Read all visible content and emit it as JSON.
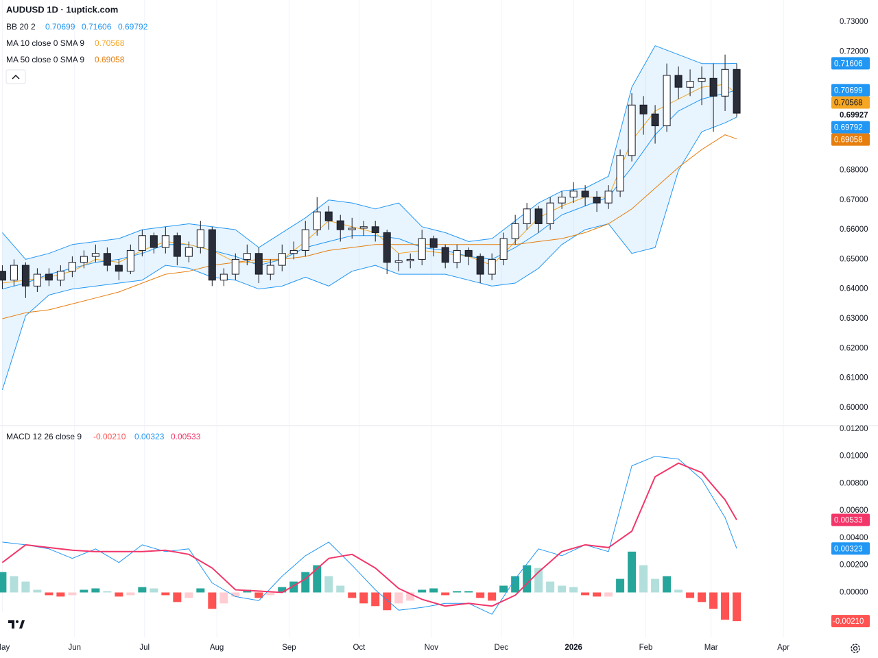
{
  "chart_data": {
    "type": "candlestick",
    "title": "AUDUSD 1D · 1uptick.com",
    "x": [
      0,
      5,
      10,
      15,
      20,
      25,
      30,
      35,
      40,
      45,
      50,
      55,
      60,
      65,
      70,
      75,
      80,
      85,
      90,
      95,
      100,
      105,
      110,
      115,
      120,
      125,
      130,
      135,
      140,
      145,
      150,
      155,
      160,
      165,
      170,
      175,
      180,
      185,
      190,
      195,
      200,
      205,
      210,
      215,
      220,
      225,
      230,
      235,
      240,
      245,
      250,
      255,
      260,
      265,
      270,
      275,
      280,
      285,
      290,
      295,
      300,
      305,
      310,
      315
    ],
    "open": [
      0.646,
      0.643,
      0.648,
      0.641,
      0.645,
      0.643,
      0.646,
      0.649,
      0.651,
      0.652,
      0.648,
      0.646,
      0.653,
      0.658,
      0.654,
      0.658,
      0.651,
      0.654,
      0.66,
      0.643,
      0.645,
      0.65,
      0.652,
      0.645,
      0.648,
      0.652,
      0.653,
      0.66,
      0.666,
      0.663,
      0.66,
      0.6605,
      0.661,
      0.659,
      0.649,
      0.6495,
      0.65,
      0.657,
      0.654,
      0.649,
      0.653,
      0.651,
      0.645,
      0.65,
      0.657,
      0.662,
      0.667,
      0.662,
      0.669,
      0.671,
      0.673,
      0.671,
      0.669,
      0.673,
      0.685,
      0.702,
      0.699,
      0.695,
      0.712,
      0.708,
      0.71,
      0.711,
      0.705,
      0.714
    ],
    "high": [
      0.648,
      0.65,
      0.649,
      0.647,
      0.647,
      0.648,
      0.651,
      0.653,
      0.655,
      0.654,
      0.65,
      0.655,
      0.66,
      0.659,
      0.661,
      0.659,
      0.656,
      0.663,
      0.661,
      0.647,
      0.652,
      0.655,
      0.654,
      0.65,
      0.655,
      0.656,
      0.663,
      0.671,
      0.668,
      0.665,
      0.664,
      0.663,
      0.663,
      0.66,
      0.652,
      0.652,
      0.66,
      0.658,
      0.655,
      0.655,
      0.654,
      0.652,
      0.652,
      0.659,
      0.665,
      0.669,
      0.668,
      0.671,
      0.673,
      0.676,
      0.675,
      0.673,
      0.675,
      0.687,
      0.706,
      0.705,
      0.702,
      0.716,
      0.715,
      0.714,
      0.715,
      0.716,
      0.719,
      0.716
    ],
    "low": [
      0.64,
      0.641,
      0.637,
      0.639,
      0.641,
      0.641,
      0.644,
      0.647,
      0.649,
      0.646,
      0.643,
      0.645,
      0.651,
      0.652,
      0.652,
      0.648,
      0.649,
      0.652,
      0.641,
      0.641,
      0.643,
      0.648,
      0.642,
      0.643,
      0.646,
      0.65,
      0.651,
      0.658,
      0.66,
      0.656,
      0.657,
      0.658,
      0.656,
      0.645,
      0.646,
      0.647,
      0.648,
      0.651,
      0.647,
      0.647,
      0.648,
      0.642,
      0.643,
      0.648,
      0.655,
      0.66,
      0.659,
      0.66,
      0.667,
      0.669,
      0.668,
      0.666,
      0.667,
      0.671,
      0.683,
      0.692,
      0.689,
      0.693,
      0.704,
      0.705,
      0.702,
      0.693,
      0.7,
      0.698
    ],
    "close": [
      0.643,
      0.648,
      0.641,
      0.645,
      0.643,
      0.646,
      0.649,
      0.651,
      0.652,
      0.648,
      0.646,
      0.653,
      0.658,
      0.654,
      0.658,
      0.651,
      0.654,
      0.66,
      0.643,
      0.645,
      0.65,
      0.652,
      0.645,
      0.648,
      0.652,
      0.653,
      0.66,
      0.666,
      0.663,
      0.66,
      0.6605,
      0.661,
      0.659,
      0.649,
      0.6495,
      0.65,
      0.657,
      0.654,
      0.649,
      0.653,
      0.651,
      0.645,
      0.65,
      0.657,
      0.662,
      0.667,
      0.662,
      0.669,
      0.671,
      0.673,
      0.671,
      0.669,
      0.673,
      0.685,
      0.702,
      0.699,
      0.695,
      0.712,
      0.708,
      0.71,
      0.711,
      0.705,
      0.714,
      0.69927
    ],
    "up_color": "#ffffff",
    "down_color": "#2a2e39",
    "xlim": [
      -1,
      355
    ],
    "xticks": [
      {
        "value": 0,
        "label": "May"
      },
      {
        "value": 31,
        "label": "Jun"
      },
      {
        "value": 61,
        "label": "Jul"
      },
      {
        "value": 92,
        "label": "Aug"
      },
      {
        "value": 123,
        "label": "Sep"
      },
      {
        "value": 153,
        "label": "Oct"
      },
      {
        "value": 184,
        "label": "Nov"
      },
      {
        "value": 214,
        "label": "Dec"
      },
      {
        "value": 245,
        "label": "2026"
      },
      {
        "value": 276,
        "label": "Feb"
      },
      {
        "value": 304,
        "label": "Mar"
      },
      {
        "value": 335,
        "label": "Apr"
      }
    ],
    "ylim": [
      0.5942,
      0.7374
    ],
    "yticks": [
      {
        "value": 0.73,
        "label": "0.73000"
      },
      {
        "value": 0.72,
        "label": "0.72000"
      },
      {
        "value": 0.68,
        "label": "0.68000"
      },
      {
        "value": 0.67,
        "label": "0.67000"
      },
      {
        "value": 0.66,
        "label": "0.66000"
      },
      {
        "value": 0.65,
        "label": "0.65000"
      },
      {
        "value": 0.64,
        "label": "0.64000"
      },
      {
        "value": 0.63,
        "label": "0.63000"
      },
      {
        "value": 0.62,
        "label": "0.62000"
      },
      {
        "value": 0.61,
        "label": "0.61000"
      },
      {
        "value": 0.6,
        "label": "0.60000"
      }
    ],
    "grid": true,
    "bb_label": "BB 20 2",
    "ma10_label": "MA 10 close 0 SMA 9",
    "ma50_label": "MA 50 close 0 SMA 9",
    "overlays": {
      "x": [
        0,
        10,
        20,
        30,
        40,
        50,
        60,
        70,
        80,
        90,
        100,
        110,
        120,
        130,
        140,
        150,
        160,
        170,
        180,
        190,
        200,
        210,
        220,
        230,
        240,
        250,
        260,
        270,
        280,
        290,
        300,
        310,
        315
      ],
      "band_fill": "#2196f3",
      "series": [
        {
          "color": "#2196f3",
          "values": [
            0.659,
            0.65,
            0.652,
            0.655,
            0.656,
            0.657,
            0.66,
            0.661,
            0.662,
            0.661,
            0.66,
            0.654,
            0.659,
            0.664,
            0.67,
            0.669,
            0.667,
            0.669,
            0.661,
            0.659,
            0.656,
            0.657,
            0.663,
            0.669,
            0.673,
            0.674,
            0.678,
            0.708,
            0.722,
            0.719,
            0.716,
            0.716,
            0.71606
          ]
        },
        {
          "color": "#2196f3",
          "values": [
            0.64,
            0.642,
            0.645,
            0.647,
            0.649,
            0.65,
            0.652,
            0.655,
            0.655,
            0.653,
            0.651,
            0.648,
            0.65,
            0.654,
            0.656,
            0.658,
            0.658,
            0.657,
            0.654,
            0.653,
            0.651,
            0.65,
            0.654,
            0.659,
            0.665,
            0.668,
            0.671,
            0.681,
            0.692,
            0.7,
            0.704,
            0.706,
            0.70699
          ]
        },
        {
          "color": "#2196f3",
          "values": [
            0.606,
            0.631,
            0.638,
            0.64,
            0.641,
            0.642,
            0.643,
            0.648,
            0.647,
            0.644,
            0.643,
            0.64,
            0.641,
            0.644,
            0.641,
            0.646,
            0.648,
            0.645,
            0.645,
            0.645,
            0.643,
            0.641,
            0.642,
            0.647,
            0.655,
            0.66,
            0.662,
            0.652,
            0.654,
            0.68,
            0.693,
            0.696,
            0.69792
          ]
        },
        {
          "color": "#f5a623",
          "values": [
            0.642,
            0.643,
            0.644,
            0.646,
            0.65,
            0.649,
            0.653,
            0.656,
            0.655,
            0.653,
            0.649,
            0.649,
            0.65,
            0.656,
            0.663,
            0.661,
            0.659,
            0.652,
            0.653,
            0.652,
            0.651,
            0.648,
            0.656,
            0.664,
            0.668,
            0.671,
            0.671,
            0.69,
            0.7,
            0.704,
            0.708,
            0.709,
            0.70568
          ]
        },
        {
          "color": "#e67e0e",
          "values": [
            0.63,
            0.632,
            0.633,
            0.635,
            0.637,
            0.639,
            0.642,
            0.645,
            0.646,
            0.648,
            0.649,
            0.65,
            0.65,
            0.651,
            0.653,
            0.654,
            0.655,
            0.655,
            0.655,
            0.655,
            0.655,
            0.655,
            0.655,
            0.656,
            0.657,
            0.659,
            0.662,
            0.667,
            0.674,
            0.681,
            0.687,
            0.692,
            0.69058
          ]
        }
      ]
    },
    "macd": {
      "type": "line",
      "label": "MACD 12 26 close 9",
      "x": [
        0,
        10,
        20,
        30,
        40,
        50,
        60,
        70,
        80,
        90,
        100,
        110,
        120,
        130,
        140,
        150,
        160,
        170,
        180,
        190,
        200,
        210,
        220,
        230,
        240,
        250,
        260,
        270,
        280,
        290,
        300,
        310,
        315
      ],
      "ylim": [
        -0.0033,
        0.0122
      ],
      "yticks": [
        {
          "value": 0.012,
          "label": "0.01200"
        },
        {
          "value": 0.01,
          "label": "0.01000"
        },
        {
          "value": 0.008,
          "label": "0.00800"
        },
        {
          "value": 0.006,
          "label": "0.00600"
        },
        {
          "value": 0.004,
          "label": "0.00400"
        },
        {
          "value": 0.002,
          "label": "0.00200"
        },
        {
          "value": 0,
          "label": "0.00000"
        }
      ],
      "series": [
        {
          "color": "#2196f3",
          "values": [
            0.0037,
            0.0035,
            0.0032,
            0.0025,
            0.0032,
            0.0022,
            0.0035,
            0.003,
            0.0032,
            0.0007,
            -0.0003,
            -0.0006,
            0.0012,
            0.0027,
            0.0037,
            0.002,
            0.0002,
            -0.0013,
            -0.0011,
            -0.0008,
            -0.0008,
            -0.0016,
            0.001,
            0.0032,
            0.0027,
            0.0035,
            0.003,
            0.0093,
            0.01,
            0.0098,
            0.0083,
            0.0055,
            0.00323
          ]
        },
        {
          "color": "#f23669",
          "values": [
            0.0022,
            0.0035,
            0.0033,
            0.0031,
            0.003,
            0.003,
            0.003,
            0.0031,
            0.0028,
            0.0018,
            0.0002,
            0.0001,
            0.0,
            0.001,
            0.0025,
            0.0028,
            0.0018,
            0.0003,
            -0.0005,
            -0.001,
            -0.0008,
            -0.001,
            -0.0002,
            0.0015,
            0.003,
            0.0035,
            0.0033,
            0.0045,
            0.0085,
            0.0095,
            0.0088,
            0.0068,
            0.00533
          ]
        }
      ],
      "histogram": {
        "values": [
          0.0015,
          0.0012,
          0.0008,
          0.0002,
          -0.0002,
          -0.0003,
          -0.0002,
          0.0002,
          0.0003,
          0.0001,
          -0.0003,
          -0.0002,
          0.0004,
          0.0003,
          -0.0002,
          -0.0007,
          -0.0004,
          0.0003,
          -0.0012,
          -0.0008,
          -0.0003,
          0.0002,
          -0.0004,
          -0.0002,
          0.0004,
          0.0008,
          0.0015,
          0.002,
          0.0012,
          0.0005,
          -0.0004,
          -0.0008,
          -0.001,
          -0.0013,
          -0.0008,
          -0.0006,
          0.0002,
          0.0003,
          -0.0002,
          0.0001,
          0.0001,
          -0.0004,
          -0.0006,
          0.0005,
          0.0012,
          0.002,
          0.0018,
          0.0008,
          0.0005,
          0.0004,
          -0.0002,
          -0.0003,
          -0.0003,
          0.001,
          0.003,
          0.002,
          0.001,
          0.0012,
          0.0002,
          -0.0004,
          -0.0007,
          -0.0012,
          -0.002,
          -0.0021
        ],
        "last_label": {
          "value": -0.0021,
          "label": "-0.00210"
        },
        "colors": {
          "up_rising": "#26a69a",
          "up_falling": "#b2dfdb",
          "down_falling": "#ff5252",
          "down_rising": "#ffcdd2"
        }
      }
    }
  }
}
